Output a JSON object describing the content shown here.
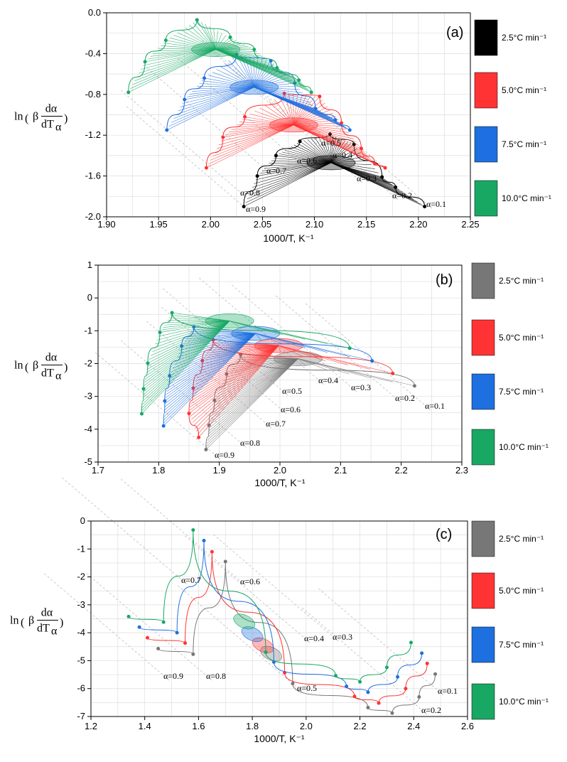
{
  "chart_data": [
    {
      "type": "line",
      "panel_label": "(a)",
      "xlabel": "1000/T, K⁻¹",
      "ylabel": {
        "prefix": "ln",
        "beta": "β",
        "num": "dα",
        "den": "dT",
        "den_sub": "α"
      },
      "xlim": [
        1.9,
        2.25
      ],
      "ylim": [
        -2.0,
        0.0
      ],
      "xticks": [
        "1.90",
        "1.95",
        "2.00",
        "2.05",
        "2.10",
        "2.15",
        "2.20",
        "2.25"
      ],
      "yticks": [
        "0.0",
        "-0.4",
        "-0.8",
        "-1.2",
        "-1.6",
        "-2.0"
      ],
      "alpha_labels": [
        "α=0.1",
        "α=0.2",
        "α=0.3",
        "α=0.4",
        "α=0.5",
        "α=0.6",
        "α=0.7",
        "α=0.8",
        "α=0.9"
      ],
      "legend": [
        "2.5°C min⁻¹",
        "5.0°C min⁻¹",
        "7.5°C min⁻¹",
        "10.0°C min⁻¹"
      ],
      "series": [
        {
          "name": "2.5°C min⁻¹",
          "color": "#000000",
          "x": [
            2.206,
            2.178,
            2.165,
            2.138,
            2.115,
            2.086,
            2.063,
            2.045,
            2.032
          ],
          "y": [
            -1.9,
            -1.71,
            -1.61,
            -1.29,
            -1.19,
            -1.26,
            -1.4,
            -1.6,
            -1.9
          ],
          "center": [
            2.116,
            -1.47
          ]
        },
        {
          "name": "5.0°C min⁻¹",
          "color": "#FF3333",
          "x": [
            2.168,
            2.158,
            2.145,
            2.126,
            2.105,
            2.071,
            2.033,
            2.012,
            1.996
          ],
          "y": [
            -1.52,
            -1.48,
            -1.33,
            -1.08,
            -0.82,
            -0.79,
            -1.02,
            -1.22,
            -1.52
          ],
          "center": [
            2.08,
            -1.1
          ]
        },
        {
          "name": "7.5°C min⁻¹",
          "color": "#1E6FE0",
          "x": [
            2.134,
            2.12,
            2.101,
            2.081,
            2.058,
            2.025,
            1.994,
            1.975,
            1.958
          ],
          "y": [
            -1.15,
            -1.05,
            -0.94,
            -0.69,
            -0.47,
            -0.41,
            -0.64,
            -0.85,
            -1.15
          ],
          "center": [
            2.042,
            -0.73
          ]
        },
        {
          "name": "10.0°C min⁻¹",
          "color": "#18A864",
          "x": [
            2.097,
            2.085,
            2.064,
            2.042,
            2.019,
            1.987,
            1.957,
            1.937,
            1.921
          ],
          "y": [
            -0.78,
            -0.66,
            -0.54,
            -0.36,
            -0.24,
            -0.07,
            -0.27,
            -0.48,
            -0.78
          ],
          "center": [
            2.005,
            -0.36
          ]
        }
      ]
    },
    {
      "type": "line",
      "panel_label": "(b)",
      "xlabel": "1000/T, K⁻¹",
      "ylabel": {
        "prefix": "ln",
        "beta": "β",
        "num": "dα",
        "den": "dT",
        "den_sub": "α"
      },
      "xlim": [
        1.7,
        2.3
      ],
      "ylim": [
        -5,
        1
      ],
      "xticks": [
        "1.7",
        "1.8",
        "1.9",
        "2.0",
        "2.1",
        "2.2",
        "2.3"
      ],
      "yticks": [
        "1",
        "0",
        "-1",
        "-2",
        "-3",
        "-4",
        "-5"
      ],
      "alpha_labels": [
        "α=0.1",
        "α=0.2",
        "α=0.3",
        "α=0.4",
        "α=0.5",
        "α=0.6",
        "α=0.7",
        "α=0.8",
        "α=0.9"
      ],
      "legend": [
        "2.5°C min⁻¹",
        "5.0°C min⁻¹",
        "7.5°C min⁻¹",
        "10.0°C min⁻¹"
      ],
      "series": [
        {
          "name": "2.5°C min⁻¹",
          "color": "#777777",
          "x": [
            2.222,
            1.935,
            1.912,
            1.892,
            1.883,
            1.878
          ],
          "y": [
            -2.68,
            -1.72,
            -2.32,
            -3.12,
            -3.88,
            -4.62
          ],
          "center": [
            2.03,
            -1.85
          ]
        },
        {
          "name": "5.0°C min⁻¹",
          "color": "#FF3333",
          "x": [
            2.186,
            1.89,
            1.872,
            1.857,
            1.85,
            1.866
          ],
          "y": [
            -2.3,
            -1.28,
            -1.91,
            -2.75,
            -3.52,
            -4.25
          ],
          "center": [
            1.998,
            -1.45
          ]
        },
        {
          "name": "7.5°C min⁻¹",
          "color": "#1E6FE0",
          "x": [
            2.152,
            1.858,
            1.838,
            1.818,
            1.81,
            1.808
          ],
          "y": [
            -1.92,
            -0.88,
            -1.47,
            -2.37,
            -3.14,
            -3.9
          ],
          "center": [
            1.96,
            -1.08
          ]
        },
        {
          "name": "10.0°C min⁻¹",
          "color": "#18A864",
          "x": [
            2.115,
            1.822,
            1.802,
            1.782,
            1.775,
            1.772
          ],
          "y": [
            -1.53,
            -0.45,
            -1.05,
            -1.99,
            -2.77,
            -3.53
          ],
          "center": [
            1.917,
            -0.7
          ]
        }
      ]
    },
    {
      "type": "line",
      "panel_label": "(c)",
      "xlabel": "1000/T, K⁻¹",
      "ylabel": {
        "prefix": "ln",
        "beta": "β",
        "num": "dα",
        "den": "dT",
        "den_sub": "α"
      },
      "xlim": [
        1.2,
        2.6
      ],
      "ylim": [
        -7,
        0
      ],
      "xticks": [
        "1.2",
        "1.4",
        "1.6",
        "1.8",
        "2.0",
        "2.2",
        "2.4",
        "2.6"
      ],
      "yticks": [
        "0",
        "-1",
        "-2",
        "-3",
        "-4",
        "-5",
        "-6",
        "-7"
      ],
      "alpha_labels": [
        "α=0.1",
        "α=0.2",
        "α=0.3",
        "α=0.4",
        "α=0.5",
        "α=0.6",
        "α=0.7",
        "α=0.8",
        "α=0.9"
      ],
      "legend": [
        "2.5°C min⁻¹",
        "5.0°C min⁻¹",
        "7.5°C min⁻¹",
        "10.0°C min⁻¹"
      ],
      "series": [
        {
          "name": "2.5°C min⁻¹",
          "color": "#777777",
          "x": [
            2.48,
            2.42,
            2.32,
            2.23,
            1.95,
            1.7,
            1.58,
            1.45
          ],
          "y": [
            -5.48,
            -6.3,
            -6.88,
            -6.68,
            -5.82,
            -1.45,
            -4.77,
            -4.57
          ],
          "center": [
            1.87,
            -4.75
          ]
        },
        {
          "name": "5.0°C min⁻¹",
          "color": "#FF3333",
          "x": [
            2.45,
            2.37,
            2.27,
            2.18,
            1.92,
            1.65,
            1.55,
            1.41
          ],
          "y": [
            -5.1,
            -6.0,
            -6.52,
            -6.28,
            -5.43,
            -1.1,
            -4.37,
            -4.18
          ],
          "center": [
            1.84,
            -4.45
          ]
        },
        {
          "name": "7.5°C min⁻¹",
          "color": "#1E6FE0",
          "x": [
            2.43,
            2.34,
            2.23,
            2.15,
            1.88,
            1.62,
            1.52,
            1.38
          ],
          "y": [
            -4.73,
            -5.58,
            -6.13,
            -5.92,
            -5.05,
            -0.7,
            -4.0,
            -3.8
          ],
          "center": [
            1.8,
            -4.05
          ]
        },
        {
          "name": "10.0°C min⁻¹",
          "color": "#18A864",
          "x": [
            2.39,
            2.3,
            2.2,
            2.11,
            1.85,
            1.58,
            1.47,
            1.34
          ],
          "y": [
            -4.35,
            -5.24,
            -5.76,
            -5.54,
            -4.7,
            -0.32,
            -3.62,
            -3.42
          ],
          "center": [
            1.77,
            -3.6
          ]
        }
      ]
    }
  ]
}
